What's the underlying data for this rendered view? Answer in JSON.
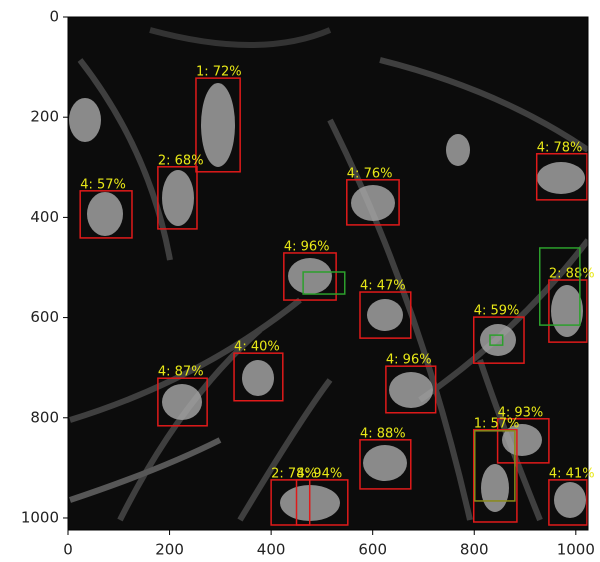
{
  "chart_data": {
    "type": "detections",
    "xlim": [
      0,
      1024
    ],
    "ylim": [
      1024,
      0
    ],
    "xticks": [
      0,
      200,
      400,
      600,
      800,
      1000
    ],
    "yticks": [
      0,
      200,
      400,
      600,
      800,
      1000
    ],
    "label_color": "#e8e817",
    "detections": [
      {
        "label": "1: 72%",
        "color": "#e01a1a",
        "x": [
          252,
          339
        ],
        "y": [
          122,
          309
        ]
      },
      {
        "label": "2: 68%",
        "color": "#e01a1a",
        "x": [
          177,
          254
        ],
        "y": [
          299,
          423
        ]
      },
      {
        "label": "4: 57%",
        "color": "#e01a1a",
        "x": [
          24,
          126
        ],
        "y": [
          347,
          441
        ]
      },
      {
        "label": "4: 76%",
        "color": "#e01a1a",
        "x": [
          549,
          652
        ],
        "y": [
          325,
          415
        ]
      },
      {
        "label": "4: 78%",
        "color": "#e01a1a",
        "x": [
          923,
          1022
        ],
        "y": [
          273,
          365
        ]
      },
      {
        "label": "4: 96%",
        "color": "#e01a1a",
        "x": [
          425,
          528
        ],
        "y": [
          471,
          565
        ]
      },
      {
        "color": "#2ca02c",
        "x": [
          463,
          545
        ],
        "y": [
          509,
          553
        ]
      },
      {
        "label": "4: 47%",
        "color": "#e01a1a",
        "x": [
          575,
          675
        ],
        "y": [
          549,
          641
        ]
      },
      {
        "label": "2: 88%",
        "color": "#e01a1a",
        "x": [
          947,
          1022
        ],
        "y": [
          525,
          649
        ]
      },
      {
        "color": "#2ca02c",
        "x": [
          929,
          1008
        ],
        "y": [
          461,
          615
        ]
      },
      {
        "label": "4: 59%",
        "color": "#e01a1a",
        "x": [
          799,
          898
        ],
        "y": [
          599,
          691
        ]
      },
      {
        "color": "#2ca02c",
        "x": [
          831,
          856
        ],
        "y": [
          635,
          655
        ]
      },
      {
        "label": "4: 87%",
        "color": "#e01a1a",
        "x": [
          177,
          274
        ],
        "y": [
          721,
          816
        ]
      },
      {
        "label": "4: 40%",
        "color": "#e01a1a",
        "x": [
          327,
          423
        ],
        "y": [
          671,
          766
        ]
      },
      {
        "label": "4: 96%",
        "color": "#e01a1a",
        "x": [
          626,
          724
        ],
        "y": [
          697,
          790
        ]
      },
      {
        "label": "4: 93%",
        "color": "#e01a1a",
        "x": [
          846,
          947
        ],
        "y": [
          802,
          890
        ]
      },
      {
        "label": "1: 57%",
        "color": "#e01a1a",
        "x": [
          799,
          884
        ],
        "y": [
          824,
          1008
        ]
      },
      {
        "color": "#8a8a1a",
        "x": [
          801,
          880
        ],
        "y": [
          826,
          966
        ]
      },
      {
        "label": "4: 88%",
        "color": "#e01a1a",
        "x": [
          575,
          675
        ],
        "y": [
          844,
          942
        ]
      },
      {
        "label": "2: 78%",
        "color": "#e01a1a",
        "x": [
          400,
          476
        ],
        "y": [
          924,
          1014
        ]
      },
      {
        "label": "4: 94%",
        "color": "#e01a1a",
        "x": [
          450,
          551
        ],
        "y": [
          924,
          1014
        ]
      },
      {
        "label": "4: 41%",
        "color": "#e01a1a",
        "x": [
          947,
          1022
        ],
        "y": [
          924,
          1014
        ]
      }
    ]
  }
}
